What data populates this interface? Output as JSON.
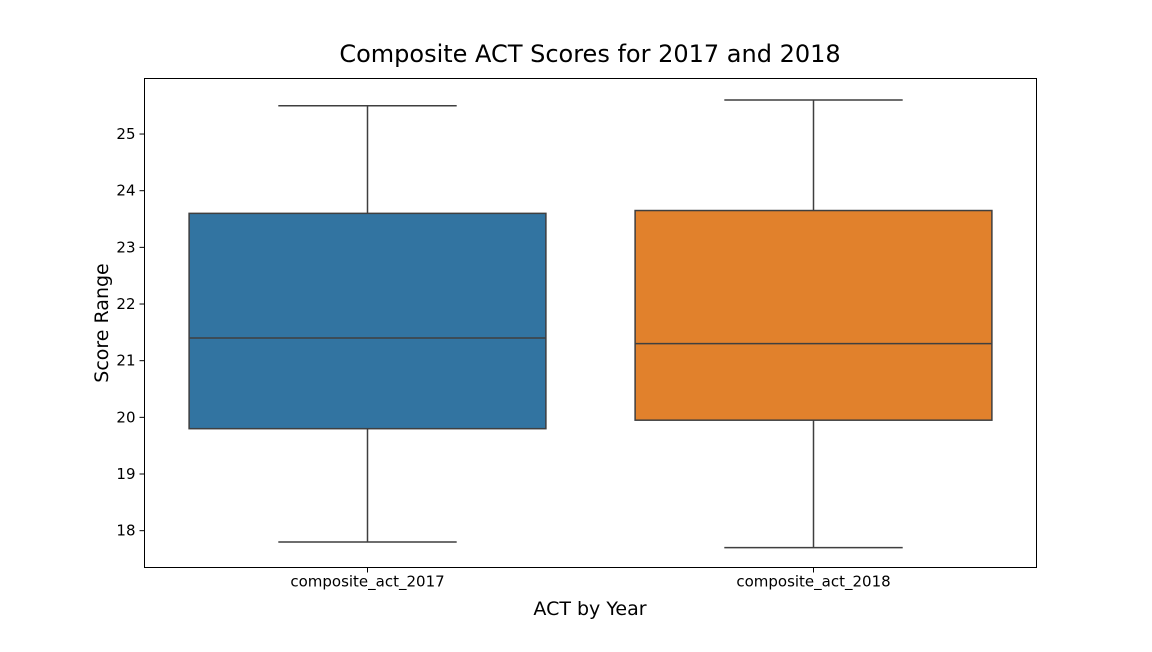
{
  "chart_data": {
    "type": "box",
    "title": "Composite ACT Scores for 2017 and 2018",
    "xlabel": "ACT by Year",
    "ylabel": "Score Range",
    "ylim": [
      17.35,
      25.98
    ],
    "yticks": [
      18,
      19,
      20,
      21,
      22,
      23,
      24,
      25
    ],
    "grid": false,
    "legend": "none",
    "categories": [
      "composite_act_2017",
      "composite_act_2018"
    ],
    "boxes": [
      {
        "category": "composite_act_2017",
        "whisker_low": 17.8,
        "q1": 19.8,
        "median": 21.4,
        "q3": 23.6,
        "whisker_high": 25.5,
        "color": "#3274a1"
      },
      {
        "category": "composite_act_2018",
        "whisker_low": 17.7,
        "q1": 19.95,
        "median": 21.3,
        "q3": 23.65,
        "whisker_high": 25.6,
        "color": "#e1812c"
      }
    ]
  }
}
